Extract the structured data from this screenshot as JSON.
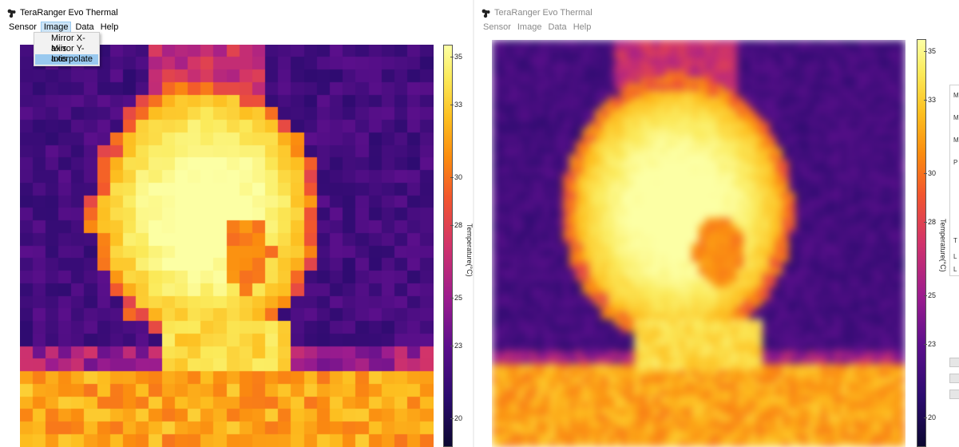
{
  "windows": [
    {
      "title": "TeraRanger Evo Thermal",
      "menu": [
        "Sensor",
        "Image",
        "Data",
        "Help"
      ],
      "active_menu": "Image",
      "dropdown": {
        "items": [
          "Mirror X-axis",
          "Mirror Y-axis",
          "Interpolate"
        ],
        "selected": "Interpolate"
      },
      "interpolated": false,
      "colorbar": {
        "ticks": [
          "35",
          "33",
          "30",
          "28",
          "25",
          "23",
          "20"
        ],
        "label": "Temperature(°C)"
      }
    },
    {
      "title": "TeraRanger Evo Thermal",
      "menu": [
        "Sensor",
        "Image",
        "Data",
        "Help"
      ],
      "interpolated": true,
      "colorbar": {
        "ticks": [
          "35",
          "33",
          "30",
          "28",
          "25",
          "23",
          "20"
        ],
        "label": "Temperature(°C)"
      },
      "side_panel_letters": [
        "M",
        "M",
        "M",
        "P",
        "T",
        "L",
        "L"
      ]
    }
  ],
  "colors": {
    "accent_menu_bg": "#cce4f7",
    "dropdown_selected": "#99c9ef",
    "colormap": [
      "#0c0830",
      "#2a0b6e",
      "#5c0f8c",
      "#9c1c8e",
      "#d1336b",
      "#f2562e",
      "#fb8c0f",
      "#fdbf20",
      "#fbea5a",
      "#fcffa4"
    ]
  }
}
